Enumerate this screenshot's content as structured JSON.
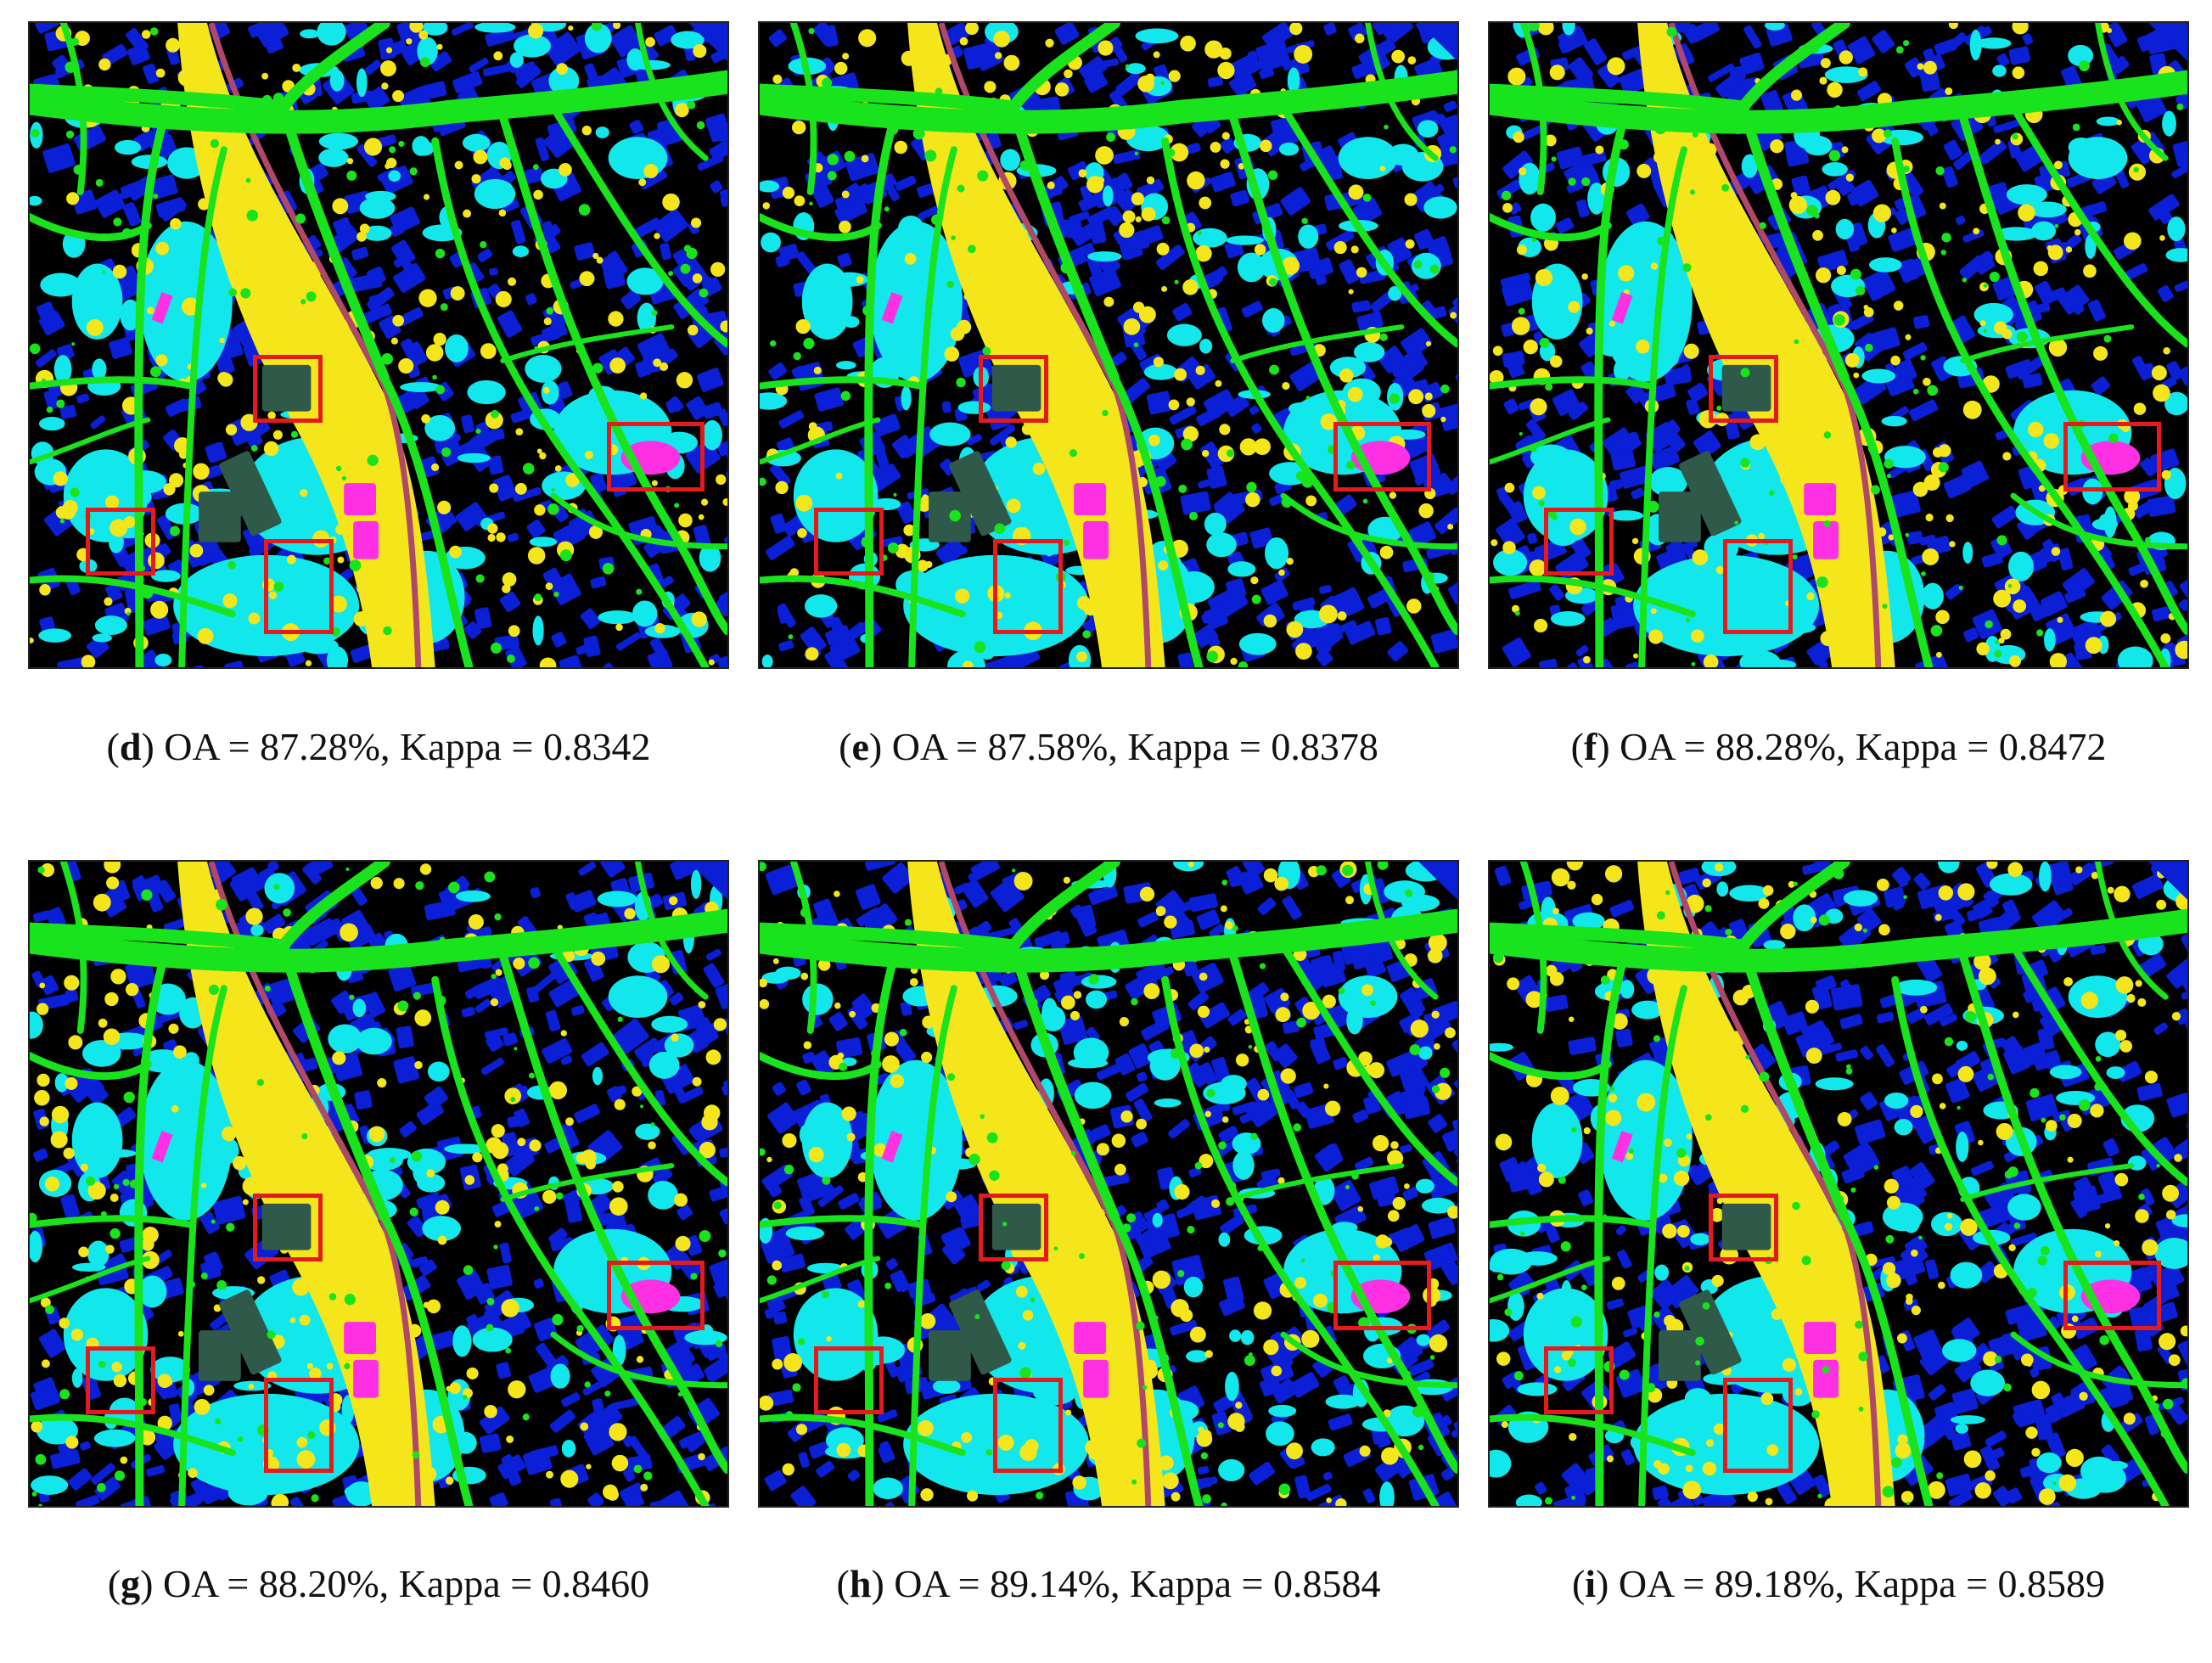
{
  "colors": {
    "background": "#000000",
    "road": "#19e31c",
    "building": "#0a1fd6",
    "water_cyan": "#12e8ec",
    "yellow_vegetation": "#f4e61a",
    "magenta_roof": "#ff2fe4",
    "dark_green": "#2f5a4a",
    "railway": "#b0486a",
    "highlight_box": "#e41a1c"
  },
  "panels": [
    {
      "letter": "d",
      "oa": "87.28%",
      "kappa": "0.8342"
    },
    {
      "letter": "e",
      "oa": "87.58%",
      "kappa": "0.8378"
    },
    {
      "letter": "f",
      "oa": "88.28%",
      "kappa": "0.8472"
    },
    {
      "letter": "g",
      "oa": "88.20%",
      "kappa": "0.8460"
    },
    {
      "letter": "h",
      "oa": "89.14%",
      "kappa": "0.8584"
    },
    {
      "letter": "i",
      "oa": "89.18%",
      "kappa": "0.8589"
    }
  ],
  "caption_parts": {
    "oa_prefix": " OA = ",
    "kappa_prefix": ", Kappa = "
  }
}
